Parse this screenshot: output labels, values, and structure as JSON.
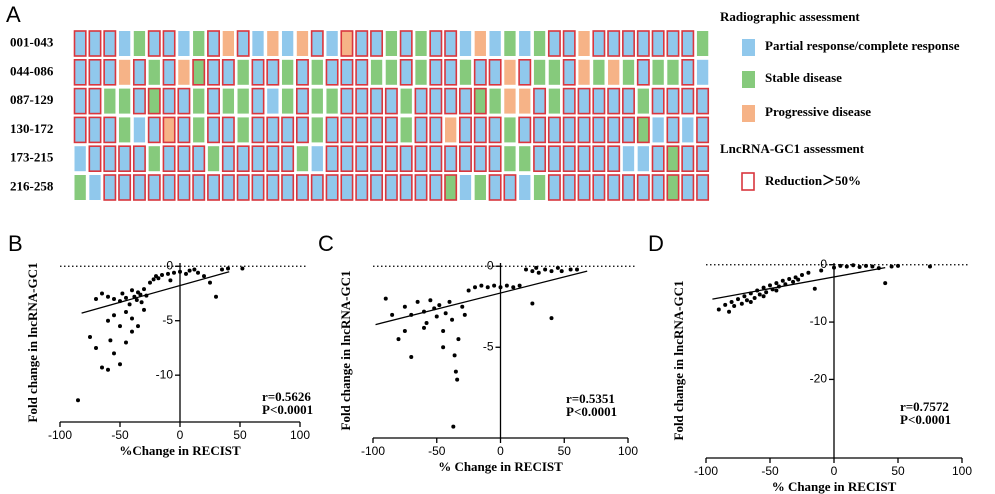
{
  "chart_data": [
    {
      "type": "grid",
      "label": "A",
      "legend": {
        "title": "Radiographic assessment",
        "items": [
          {
            "name": "Partial response/complete response",
            "color": "#90c8ec"
          },
          {
            "name": "Stable disease",
            "color": "#86ca7c"
          },
          {
            "name": "Progressive disease",
            "color": "#f6b387"
          }
        ]
      },
      "outline": {
        "title": "LncRNA-GC1 assessment",
        "name": "Reduction＞50%",
        "color": "#d9363e"
      },
      "rows": [
        {
          "label": "001-043",
          "status": [
            0,
            0,
            0,
            0,
            1,
            0,
            0,
            0,
            1,
            0,
            2,
            0,
            0,
            2,
            0,
            2,
            0,
            0,
            2,
            0,
            0,
            1,
            0,
            1,
            0,
            0,
            0,
            2,
            0,
            1,
            0,
            1,
            0,
            0,
            2,
            0,
            0,
            0,
            0,
            0,
            0,
            0,
            1
          ],
          "reduction": [
            1,
            1,
            1,
            0,
            0,
            1,
            1,
            0,
            0,
            1,
            0,
            1,
            0,
            0,
            0,
            0,
            1,
            0,
            1,
            1,
            1,
            0,
            1,
            0,
            1,
            1,
            0,
            0,
            0,
            0,
            0,
            0,
            1,
            1,
            0,
            1,
            1,
            1,
            1,
            1,
            1,
            1,
            0
          ]
        },
        {
          "label": "044-086",
          "status": [
            0,
            0,
            0,
            2,
            0,
            1,
            0,
            2,
            1,
            0,
            0,
            1,
            0,
            0,
            1,
            0,
            1,
            0,
            0,
            0,
            1,
            1,
            0,
            1,
            0,
            0,
            1,
            0,
            0,
            2,
            0,
            1,
            1,
            0,
            2,
            1,
            2,
            1,
            0,
            1,
            1,
            0,
            0
          ],
          "reduction": [
            1,
            1,
            1,
            0,
            1,
            0,
            1,
            0,
            1,
            1,
            1,
            0,
            1,
            1,
            0,
            1,
            0,
            1,
            1,
            1,
            0,
            0,
            1,
            0,
            1,
            1,
            0,
            1,
            1,
            0,
            1,
            0,
            0,
            1,
            0,
            0,
            0,
            0,
            1,
            0,
            0,
            1,
            0
          ]
        },
        {
          "label": "087-129",
          "status": [
            0,
            0,
            1,
            1,
            0,
            1,
            0,
            0,
            1,
            0,
            1,
            1,
            0,
            0,
            1,
            0,
            1,
            1,
            0,
            0,
            0,
            0,
            1,
            0,
            0,
            0,
            0,
            1,
            1,
            2,
            2,
            0,
            1,
            0,
            0,
            0,
            0,
            0,
            1,
            0,
            0,
            0,
            0
          ],
          "reduction": [
            1,
            1,
            0,
            0,
            1,
            1,
            1,
            1,
            0,
            1,
            0,
            0,
            1,
            0,
            0,
            1,
            0,
            0,
            1,
            1,
            1,
            1,
            0,
            1,
            1,
            1,
            1,
            1,
            0,
            0,
            0,
            1,
            0,
            1,
            1,
            1,
            1,
            1,
            0,
            1,
            1,
            1,
            1
          ]
        },
        {
          "label": "130-172",
          "status": [
            0,
            0,
            0,
            1,
            0,
            0,
            2,
            0,
            1,
            0,
            0,
            1,
            0,
            0,
            0,
            0,
            1,
            0,
            0,
            0,
            0,
            0,
            1,
            0,
            0,
            2,
            0,
            0,
            0,
            1,
            0,
            0,
            0,
            0,
            0,
            0,
            0,
            0,
            1,
            0,
            0,
            0,
            0
          ],
          "reduction": [
            1,
            1,
            1,
            0,
            0,
            1,
            1,
            1,
            0,
            1,
            1,
            0,
            1,
            1,
            1,
            1,
            0,
            1,
            1,
            1,
            1,
            1,
            0,
            1,
            1,
            0,
            1,
            1,
            1,
            0,
            1,
            1,
            1,
            1,
            1,
            1,
            1,
            1,
            1,
            0,
            1,
            0,
            1
          ]
        },
        {
          "label": "173-215",
          "status": [
            0,
            0,
            0,
            0,
            0,
            1,
            0,
            0,
            0,
            1,
            0,
            0,
            0,
            0,
            0,
            1,
            0,
            0,
            0,
            0,
            0,
            0,
            0,
            0,
            0,
            0,
            0,
            0,
            0,
            1,
            1,
            0,
            0,
            0,
            0,
            0,
            0,
            0,
            0,
            0,
            1,
            0,
            0
          ],
          "reduction": [
            0,
            1,
            1,
            1,
            1,
            0,
            1,
            1,
            1,
            0,
            1,
            1,
            1,
            1,
            1,
            0,
            0,
            1,
            1,
            1,
            1,
            1,
            1,
            1,
            1,
            1,
            1,
            1,
            1,
            0,
            0,
            1,
            1,
            1,
            1,
            1,
            1,
            0,
            0,
            1,
            1,
            1,
            1
          ]
        },
        {
          "label": "216-258",
          "status": [
            1,
            0,
            0,
            0,
            0,
            0,
            0,
            0,
            0,
            0,
            0,
            0,
            0,
            0,
            0,
            0,
            0,
            0,
            0,
            0,
            0,
            0,
            0,
            0,
            0,
            1,
            0,
            1,
            0,
            0,
            0,
            1,
            0,
            0,
            0,
            0,
            0,
            0,
            0,
            0,
            1,
            0,
            0
          ],
          "reduction": [
            0,
            0,
            1,
            1,
            1,
            1,
            1,
            1,
            1,
            1,
            1,
            1,
            1,
            1,
            1,
            1,
            1,
            1,
            1,
            1,
            1,
            1,
            1,
            1,
            1,
            1,
            0,
            0,
            1,
            1,
            0,
            0,
            1,
            1,
            1,
            1,
            1,
            1,
            1,
            1,
            1,
            1,
            1
          ]
        }
      ]
    },
    {
      "type": "scatter",
      "label": "B",
      "xlabel": "%Change in RECIST",
      "ylabel": "Fold change in lncRNA-GC1",
      "xlim": [
        -100,
        100
      ],
      "xticks": [
        -100,
        -50,
        0,
        50,
        100
      ],
      "ylim": [
        -14.3,
        0.3
      ],
      "yticks": [
        0,
        -5,
        -10
      ],
      "hline": 0,
      "annotations": [
        "r=0.5626",
        "P<0.0001"
      ],
      "color": "#000000",
      "fit": {
        "x": [
          -82,
          41
        ],
        "y": [
          -4.3,
          -0.5
        ]
      },
      "x": [
        -85,
        -75,
        -70,
        -65,
        -60,
        -55,
        -50,
        -45,
        -40,
        -35,
        -60,
        -55,
        -70,
        -65,
        -60,
        -55,
        -50,
        -48,
        -45,
        -42,
        -40,
        -38,
        -36,
        -35,
        -33,
        -32,
        -30,
        -30,
        -28,
        -25,
        -22,
        -20,
        -18,
        -15,
        -10,
        -8,
        -5,
        0,
        5,
        8,
        12,
        15,
        20,
        25,
        30,
        35,
        40,
        52,
        -45,
        -50,
        -40,
        -58
      ],
      "y": [
        -12.3,
        -6.5,
        -7.5,
        -9.3,
        -9.5,
        -8,
        -9,
        -7,
        -6,
        -5.5,
        -5,
        -4.5,
        -3,
        -2.5,
        -2.8,
        -3,
        -3.2,
        -2.5,
        -2.9,
        -3.5,
        -2.2,
        -2.8,
        -3.1,
        -2.4,
        -2.6,
        -3.3,
        -2.1,
        -4,
        -2.7,
        -1.5,
        -1.2,
        -0.9,
        -1.1,
        -0.8,
        -0.7,
        -1.3,
        -0.6,
        -0.5,
        -0.7,
        -0.4,
        -0.3,
        -0.6,
        -0.9,
        -1.5,
        -2.8,
        -0.3,
        -0.2,
        -0.2,
        -4.2,
        -5.5,
        -4.8,
        -6.8
      ]
    },
    {
      "type": "scatter",
      "label": "C",
      "xlabel": "% Change in RECIST",
      "ylabel": "Fold change in lncRNA-GC1",
      "xlim": [
        -100,
        100
      ],
      "xticks": [
        -100,
        -50,
        0,
        50,
        100
      ],
      "ylim": [
        -10.6,
        0.2
      ],
      "yticks": [
        0,
        -5
      ],
      "hline": 0,
      "annotations": [
        "r=0.5351",
        "P<0.0001"
      ],
      "color": "#000000",
      "fit": {
        "x": [
          -98,
          68
        ],
        "y": [
          -3.6,
          -0.3
        ]
      },
      "x": [
        -90,
        -85,
        -80,
        -75,
        -70,
        -65,
        -60,
        -58,
        -55,
        -52,
        -50,
        -48,
        -45,
        -43,
        -40,
        -38,
        -36,
        -35,
        -34,
        -37,
        -33,
        -30,
        -28,
        -25,
        -20,
        -15,
        -10,
        -5,
        0,
        5,
        10,
        15,
        20,
        25,
        28,
        30,
        35,
        40,
        45,
        48,
        55,
        25,
        40,
        60,
        -60,
        -70,
        -75,
        -45
      ],
      "y": [
        -2,
        -3,
        -4.5,
        -2.5,
        -5.6,
        -2.2,
        -2.8,
        -3.5,
        -2.1,
        -2.6,
        -3.1,
        -2.4,
        -4,
        -2.9,
        -2.2,
        -3.3,
        -5.5,
        -6.5,
        -7,
        -9.9,
        -4.5,
        -2.5,
        -3,
        -1.5,
        -1.3,
        -1.2,
        -1.3,
        -1.2,
        -1.3,
        -1.2,
        -1.3,
        -1.2,
        -0.2,
        -0.3,
        -0.1,
        -0.4,
        -0.2,
        -0.3,
        -0.1,
        -0.3,
        -0.2,
        -2.3,
        -3.2,
        -0.2,
        -3.8,
        -3,
        -4,
        -5
      ]
    },
    {
      "type": "scatter",
      "label": "D",
      "xlabel": "% Change in RECIST",
      "ylabel": "Fold change in lncRNA-GC1",
      "xlim": [
        -100,
        100
      ],
      "xticks": [
        -100,
        -50,
        0,
        50,
        100
      ],
      "ylim": [
        -33.7,
        0.3
      ],
      "yticks": [
        0,
        -10,
        -20
      ],
      "hline": 0,
      "annotations": [
        "r=0.7572",
        "P<0.0001"
      ],
      "color": "#000000",
      "fit": {
        "x": [
          -95,
          40
        ],
        "y": [
          -6,
          -0.5
        ]
      },
      "x": [
        -90,
        -85,
        -82,
        -80,
        -78,
        -75,
        -72,
        -70,
        -68,
        -65,
        -62,
        -60,
        -58,
        -55,
        -53,
        -50,
        -48,
        -45,
        -43,
        -40,
        -38,
        -35,
        -32,
        -30,
        -28,
        -25,
        -20,
        -15,
        -10,
        0,
        5,
        10,
        15,
        20,
        25,
        30,
        35,
        40,
        45,
        50,
        75,
        -65,
        -55,
        -45
      ],
      "y": [
        -7.8,
        -7,
        -8.2,
        -6.5,
        -7.2,
        -6,
        -6.8,
        -5.5,
        -6.2,
        -5,
        -5.8,
        -4.5,
        -5.2,
        -4,
        -4.8,
        -3.6,
        -4.3,
        -3.2,
        -3.8,
        -2.8,
        -3.4,
        -2.5,
        -3,
        -2.2,
        -2.6,
        -1.8,
        -1.4,
        -4.2,
        -1,
        -0.5,
        -0.2,
        -0.3,
        -0.1,
        -0.4,
        -0.2,
        -0.3,
        -0.6,
        -3.2,
        -0.3,
        -0.2,
        -0.3,
        -6.5,
        -5.5,
        -4.5
      ]
    }
  ]
}
